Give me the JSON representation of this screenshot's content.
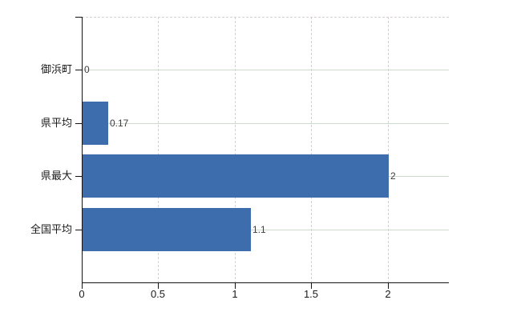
{
  "chart_data": {
    "type": "bar",
    "orientation": "horizontal",
    "title": "",
    "xlabel": "",
    "ylabel": "",
    "categories": [
      "御浜町",
      "県平均",
      "県最大",
      "全国平均"
    ],
    "values": [
      0,
      0.17,
      2,
      1.1
    ],
    "value_labels": [
      "0",
      "0.17",
      "2",
      "1.1"
    ],
    "xlim": [
      0,
      2.4
    ],
    "xticks": [
      0,
      0.5,
      1,
      1.5,
      2
    ],
    "xtick_labels": [
      "0",
      "0.5",
      "1",
      "1.5",
      "2"
    ],
    "legend": "none",
    "grid": {
      "horizontal": "solid",
      "vertical": "dashed",
      "top_border": "dashed"
    },
    "colors": {
      "bar": "#3d6dac",
      "horizontal_grid": "#cfdacf",
      "vertical_grid": "#d6d0d6",
      "axis": "#141414",
      "category_text": "#1a1a1a",
      "value_text": "#3d3d3d",
      "background": "#ffffff"
    }
  }
}
